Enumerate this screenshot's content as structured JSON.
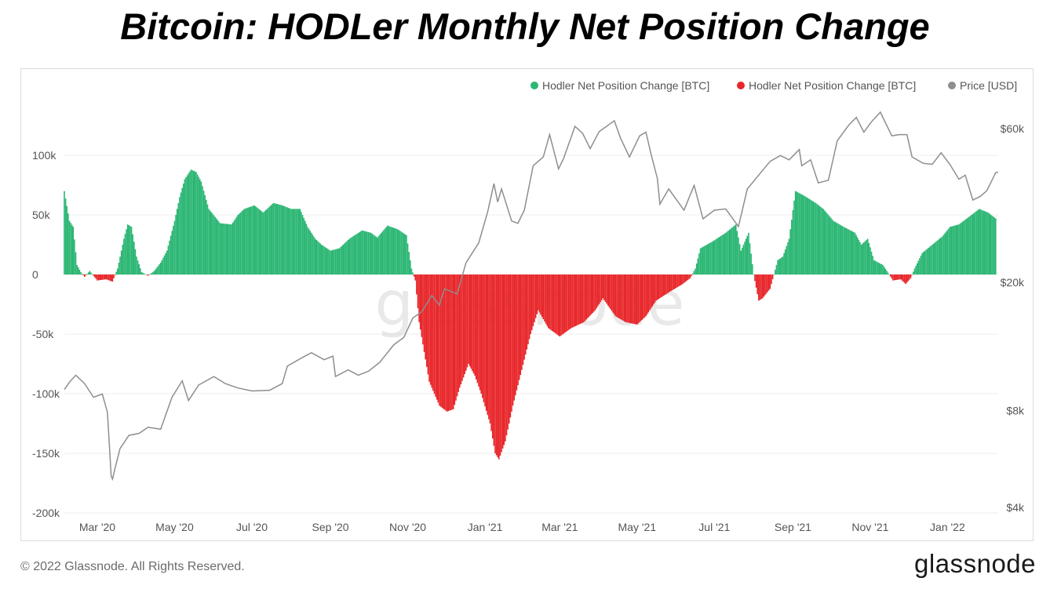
{
  "title": "Bitcoin: HODLer Monthly Net Position Change",
  "footer": {
    "copyright": "© 2022 Glassnode. All Rights Reserved.",
    "brand": "glassnode"
  },
  "watermark": "glassnode",
  "colors": {
    "positive": "#2bb673",
    "negative": "#e8262a",
    "price": "#8e8e8e",
    "grid": "#ececec"
  },
  "chart_data": {
    "type": "bar",
    "title": "Bitcoin: HODLer Monthly Net Position Change",
    "legend": [
      {
        "label": "Hodler Net Position Change [BTC]",
        "color": "#2bb673"
      },
      {
        "label": "Hodler Net Position Change [BTC]",
        "color": "#e8262a"
      },
      {
        "label": "Price [USD]",
        "color": "#8e8e8e"
      }
    ],
    "legend_position": "top-right",
    "grid": true,
    "x_range": [
      "2020-02-04",
      "2022-02-10"
    ],
    "x_ticks": [
      {
        "date": "2020-03-01",
        "label": "Mar '20"
      },
      {
        "date": "2020-05-01",
        "label": "May '20"
      },
      {
        "date": "2020-07-01",
        "label": "Jul '20"
      },
      {
        "date": "2020-09-01",
        "label": "Sep '20"
      },
      {
        "date": "2020-11-01",
        "label": "Nov '20"
      },
      {
        "date": "2021-01-01",
        "label": "Jan '21"
      },
      {
        "date": "2021-03-01",
        "label": "Mar '21"
      },
      {
        "date": "2021-05-01",
        "label": "May '21"
      },
      {
        "date": "2021-07-01",
        "label": "Jul '21"
      },
      {
        "date": "2021-09-01",
        "label": "Sep '21"
      },
      {
        "date": "2021-11-01",
        "label": "Nov '21"
      },
      {
        "date": "2022-01-01",
        "label": "Jan '22"
      }
    ],
    "y_left": {
      "ylim": [
        -200000,
        125000
      ],
      "ticks": [
        {
          "value": 100000,
          "label": "100k"
        },
        {
          "value": 50000,
          "label": "50k"
        },
        {
          "value": 0,
          "label": "0"
        },
        {
          "value": -50000,
          "label": "-50k"
        },
        {
          "value": -100000,
          "label": "-100k"
        },
        {
          "value": -150000,
          "label": "-150k"
        },
        {
          "value": -200000,
          "label": "-200k"
        }
      ]
    },
    "y_right": {
      "scale": "log",
      "ticks": [
        {
          "value": 60000,
          "label": "$60k"
        },
        {
          "value": 20000,
          "label": "$20k"
        },
        {
          "value": 8000,
          "label": "$8k"
        },
        {
          "value": 4000,
          "label": "$4k"
        }
      ]
    },
    "net_position_series": {
      "name": "Hodler Net Position Change [BTC]",
      "points": [
        [
          "2020-02-04",
          70000
        ],
        [
          "2020-02-08",
          45000
        ],
        [
          "2020-02-11",
          40000
        ],
        [
          "2020-02-14",
          8000
        ],
        [
          "2020-02-17",
          2000
        ],
        [
          "2020-02-20",
          -2000
        ],
        [
          "2020-02-24",
          3000
        ],
        [
          "2020-03-01",
          -5000
        ],
        [
          "2020-03-08",
          -4000
        ],
        [
          "2020-03-13",
          -6000
        ],
        [
          "2020-03-17",
          5000
        ],
        [
          "2020-03-22",
          30000
        ],
        [
          "2020-03-25",
          42000
        ],
        [
          "2020-03-28",
          40000
        ],
        [
          "2020-04-01",
          15000
        ],
        [
          "2020-04-05",
          2000
        ],
        [
          "2020-04-10",
          -1000
        ],
        [
          "2020-04-15",
          3000
        ],
        [
          "2020-04-20",
          10000
        ],
        [
          "2020-04-25",
          20000
        ],
        [
          "2020-05-01",
          45000
        ],
        [
          "2020-05-05",
          65000
        ],
        [
          "2020-05-09",
          80000
        ],
        [
          "2020-05-14",
          88000
        ],
        [
          "2020-05-18",
          86000
        ],
        [
          "2020-05-22",
          78000
        ],
        [
          "2020-05-28",
          55000
        ],
        [
          "2020-06-06",
          43000
        ],
        [
          "2020-06-15",
          42000
        ],
        [
          "2020-06-20",
          50000
        ],
        [
          "2020-06-25",
          55000
        ],
        [
          "2020-07-03",
          58000
        ],
        [
          "2020-07-10",
          52000
        ],
        [
          "2020-07-18",
          60000
        ],
        [
          "2020-07-25",
          58000
        ],
        [
          "2020-08-01",
          55000
        ],
        [
          "2020-08-08",
          55000
        ],
        [
          "2020-08-14",
          40000
        ],
        [
          "2020-08-20",
          30000
        ],
        [
          "2020-08-25",
          25000
        ],
        [
          "2020-09-01",
          20000
        ],
        [
          "2020-09-08",
          22000
        ],
        [
          "2020-09-16",
          30000
        ],
        [
          "2020-09-26",
          37000
        ],
        [
          "2020-10-03",
          35000
        ],
        [
          "2020-10-08",
          31000
        ],
        [
          "2020-10-16",
          41000
        ],
        [
          "2020-10-24",
          38000
        ],
        [
          "2020-10-31",
          33000
        ],
        [
          "2020-11-04",
          5000
        ],
        [
          "2020-11-07",
          -5000
        ],
        [
          "2020-11-10",
          -40000
        ],
        [
          "2020-11-18",
          -90000
        ],
        [
          "2020-11-26",
          -110000
        ],
        [
          "2020-12-02",
          -115000
        ],
        [
          "2020-12-07",
          -113000
        ],
        [
          "2020-12-12",
          -95000
        ],
        [
          "2020-12-19",
          -75000
        ],
        [
          "2020-12-24",
          -85000
        ],
        [
          "2020-12-29",
          -100000
        ],
        [
          "2021-01-05",
          -125000
        ],
        [
          "2021-01-09",
          -150000
        ],
        [
          "2021-01-12",
          -155000
        ],
        [
          "2021-01-17",
          -140000
        ],
        [
          "2021-01-23",
          -110000
        ],
        [
          "2021-01-30",
          -80000
        ],
        [
          "2021-02-06",
          -50000
        ],
        [
          "2021-02-12",
          -30000
        ],
        [
          "2021-02-20",
          -45000
        ],
        [
          "2021-03-01",
          -52000
        ],
        [
          "2021-03-10",
          -45000
        ],
        [
          "2021-03-20",
          -40000
        ],
        [
          "2021-03-29",
          -30000
        ],
        [
          "2021-04-04",
          -20000
        ],
        [
          "2021-04-14",
          -35000
        ],
        [
          "2021-04-22",
          -40000
        ],
        [
          "2021-05-01",
          -42000
        ],
        [
          "2021-05-08",
          -35000
        ],
        [
          "2021-05-16",
          -22000
        ],
        [
          "2021-05-26",
          -15000
        ],
        [
          "2021-06-06",
          -8000
        ],
        [
          "2021-06-12",
          -3000
        ],
        [
          "2021-06-16",
          5000
        ],
        [
          "2021-06-20",
          22000
        ],
        [
          "2021-06-30",
          28000
        ],
        [
          "2021-07-10",
          35000
        ],
        [
          "2021-07-18",
          42000
        ],
        [
          "2021-07-22",
          20000
        ],
        [
          "2021-07-28",
          35000
        ],
        [
          "2021-08-01",
          0
        ],
        [
          "2021-08-05",
          -22000
        ],
        [
          "2021-08-08",
          -20000
        ],
        [
          "2021-08-14",
          -12000
        ],
        [
          "2021-08-17",
          0
        ],
        [
          "2021-08-20",
          12000
        ],
        [
          "2021-08-24",
          15000
        ],
        [
          "2021-08-29",
          30000
        ],
        [
          "2021-09-03",
          70000
        ],
        [
          "2021-09-10",
          66000
        ],
        [
          "2021-09-19",
          60000
        ],
        [
          "2021-09-25",
          55000
        ],
        [
          "2021-10-03",
          45000
        ],
        [
          "2021-10-11",
          40000
        ],
        [
          "2021-10-20",
          35000
        ],
        [
          "2021-10-25",
          25000
        ],
        [
          "2021-10-30",
          30000
        ],
        [
          "2021-11-04",
          12000
        ],
        [
          "2021-11-11",
          8000
        ],
        [
          "2021-11-16",
          0
        ],
        [
          "2021-11-19",
          -5000
        ],
        [
          "2021-11-25",
          -4000
        ],
        [
          "2021-11-29",
          -8000
        ],
        [
          "2021-12-03",
          -3000
        ],
        [
          "2021-12-06",
          5000
        ],
        [
          "2021-12-12",
          18000
        ],
        [
          "2021-12-20",
          25000
        ],
        [
          "2021-12-28",
          32000
        ],
        [
          "2022-01-03",
          40000
        ],
        [
          "2022-01-10",
          42000
        ],
        [
          "2022-01-20",
          50000
        ],
        [
          "2022-01-26",
          55000
        ],
        [
          "2022-02-02",
          52000
        ],
        [
          "2022-02-08",
          47000
        ]
      ]
    },
    "price_series": {
      "name": "Price [USD]",
      "points": [
        [
          "2020-02-04",
          9300
        ],
        [
          "2020-02-08",
          9800
        ],
        [
          "2020-02-13",
          10300
        ],
        [
          "2020-02-20",
          9700
        ],
        [
          "2020-02-27",
          8800
        ],
        [
          "2020-03-05",
          9000
        ],
        [
          "2020-03-09",
          7900
        ],
        [
          "2020-03-12",
          5000
        ],
        [
          "2020-03-13",
          4900
        ],
        [
          "2020-03-15",
          5300
        ],
        [
          "2020-03-19",
          6100
        ],
        [
          "2020-03-26",
          6700
        ],
        [
          "2020-04-03",
          6800
        ],
        [
          "2020-04-10",
          7100
        ],
        [
          "2020-04-20",
          7000
        ],
        [
          "2020-04-29",
          8800
        ],
        [
          "2020-05-07",
          9900
        ],
        [
          "2020-05-12",
          8600
        ],
        [
          "2020-05-20",
          9600
        ],
        [
          "2020-06-01",
          10200
        ],
        [
          "2020-06-10",
          9700
        ],
        [
          "2020-06-20",
          9400
        ],
        [
          "2020-07-01",
          9200
        ],
        [
          "2020-07-15",
          9250
        ],
        [
          "2020-07-25",
          9700
        ],
        [
          "2020-07-29",
          11000
        ],
        [
          "2020-08-10",
          11700
        ],
        [
          "2020-08-17",
          12100
        ],
        [
          "2020-08-27",
          11500
        ],
        [
          "2020-09-03",
          11800
        ],
        [
          "2020-09-05",
          10200
        ],
        [
          "2020-09-15",
          10700
        ],
        [
          "2020-09-23",
          10300
        ],
        [
          "2020-10-01",
          10600
        ],
        [
          "2020-10-10",
          11300
        ],
        [
          "2020-10-21",
          12800
        ],
        [
          "2020-10-29",
          13500
        ],
        [
          "2020-11-05",
          15500
        ],
        [
          "2020-11-12",
          16200
        ],
        [
          "2020-11-20",
          18200
        ],
        [
          "2020-11-26",
          17000
        ],
        [
          "2020-11-30",
          19100
        ],
        [
          "2020-12-10",
          18400
        ],
        [
          "2020-12-17",
          23000
        ],
        [
          "2020-12-27",
          26500
        ],
        [
          "2021-01-03",
          33000
        ],
        [
          "2021-01-08",
          40500
        ],
        [
          "2021-01-11",
          35500
        ],
        [
          "2021-01-14",
          39000
        ],
        [
          "2021-01-22",
          31000
        ],
        [
          "2021-01-27",
          30500
        ],
        [
          "2021-02-01",
          33500
        ],
        [
          "2021-02-08",
          46000
        ],
        [
          "2021-02-16",
          49000
        ],
        [
          "2021-02-21",
          57500
        ],
        [
          "2021-02-28",
          45000
        ],
        [
          "2021-03-04",
          48500
        ],
        [
          "2021-03-13",
          61000
        ],
        [
          "2021-03-19",
          58000
        ],
        [
          "2021-03-25",
          52000
        ],
        [
          "2021-04-01",
          58700
        ],
        [
          "2021-04-13",
          63500
        ],
        [
          "2021-04-18",
          56000
        ],
        [
          "2021-04-25",
          49000
        ],
        [
          "2021-05-03",
          57000
        ],
        [
          "2021-05-08",
          58500
        ],
        [
          "2021-05-12",
          50000
        ],
        [
          "2021-05-17",
          42000
        ],
        [
          "2021-05-19",
          35000
        ],
        [
          "2021-05-26",
          39000
        ],
        [
          "2021-06-07",
          33500
        ],
        [
          "2021-06-15",
          40000
        ],
        [
          "2021-06-22",
          31500
        ],
        [
          "2021-07-01",
          33500
        ],
        [
          "2021-07-10",
          33800
        ],
        [
          "2021-07-20",
          29800
        ],
        [
          "2021-07-27",
          39000
        ],
        [
          "2021-08-07",
          44000
        ],
        [
          "2021-08-14",
          47500
        ],
        [
          "2021-08-22",
          49500
        ],
        [
          "2021-08-29",
          48000
        ],
        [
          "2021-09-06",
          51700
        ],
        [
          "2021-09-08",
          46000
        ],
        [
          "2021-09-15",
          48000
        ],
        [
          "2021-09-21",
          40700
        ],
        [
          "2021-09-29",
          41500
        ],
        [
          "2021-10-06",
          55000
        ],
        [
          "2021-10-15",
          61500
        ],
        [
          "2021-10-21",
          65000
        ],
        [
          "2021-10-27",
          58500
        ],
        [
          "2021-11-02",
          63000
        ],
        [
          "2021-11-09",
          67500
        ],
        [
          "2021-11-18",
          57000
        ],
        [
          "2021-11-24",
          57500
        ],
        [
          "2021-11-30",
          57500
        ],
        [
          "2021-12-04",
          49000
        ],
        [
          "2021-12-13",
          46800
        ],
        [
          "2021-12-20",
          46500
        ],
        [
          "2021-12-27",
          50500
        ],
        [
          "2022-01-03",
          46400
        ],
        [
          "2022-01-10",
          41800
        ],
        [
          "2022-01-15",
          43000
        ],
        [
          "2022-01-21",
          36000
        ],
        [
          "2022-01-27",
          37000
        ],
        [
          "2022-02-01",
          38500
        ],
        [
          "2022-02-08",
          43800
        ],
        [
          "2022-02-10",
          44000
        ]
      ]
    }
  }
}
